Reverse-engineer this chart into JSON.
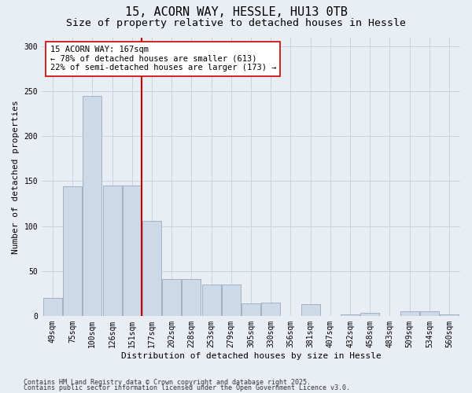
{
  "title_line1": "15, ACORN WAY, HESSLE, HU13 0TB",
  "title_line2": "Size of property relative to detached houses in Hessle",
  "xlabel": "Distribution of detached houses by size in Hessle",
  "ylabel": "Number of detached properties",
  "categories": [
    "49sqm",
    "75sqm",
    "100sqm",
    "126sqm",
    "151sqm",
    "177sqm",
    "202sqm",
    "228sqm",
    "253sqm",
    "279sqm",
    "305sqm",
    "330sqm",
    "356sqm",
    "381sqm",
    "407sqm",
    "432sqm",
    "458sqm",
    "483sqm",
    "509sqm",
    "534sqm",
    "560sqm"
  ],
  "values": [
    20,
    144,
    245,
    145,
    145,
    106,
    41,
    41,
    35,
    35,
    14,
    15,
    0,
    13,
    0,
    2,
    3,
    0,
    5,
    5,
    2
  ],
  "bar_color": "#ccd9e8",
  "bar_edge_color": "#99aabb",
  "ref_line_color": "#cc0000",
  "ref_line_x": 4.5,
  "annotation_text": "15 ACORN WAY: 167sqm\n← 78% of detached houses are smaller (613)\n22% of semi-detached houses are larger (173) →",
  "annotation_box_facecolor": "#ffffff",
  "annotation_box_edgecolor": "#cc0000",
  "grid_color": "#c8d4e0",
  "background_color": "#e8eef4",
  "ylim": [
    0,
    310
  ],
  "yticks": [
    0,
    50,
    100,
    150,
    200,
    250,
    300
  ],
  "title_fontsize": 11,
  "subtitle_fontsize": 9.5,
  "axis_label_fontsize": 8,
  "tick_fontsize": 7,
  "annotation_fontsize": 7.5,
  "footer_fontsize": 6,
  "footer_line1": "Contains HM Land Registry data © Crown copyright and database right 2025.",
  "footer_line2": "Contains public sector information licensed under the Open Government Licence v3.0."
}
